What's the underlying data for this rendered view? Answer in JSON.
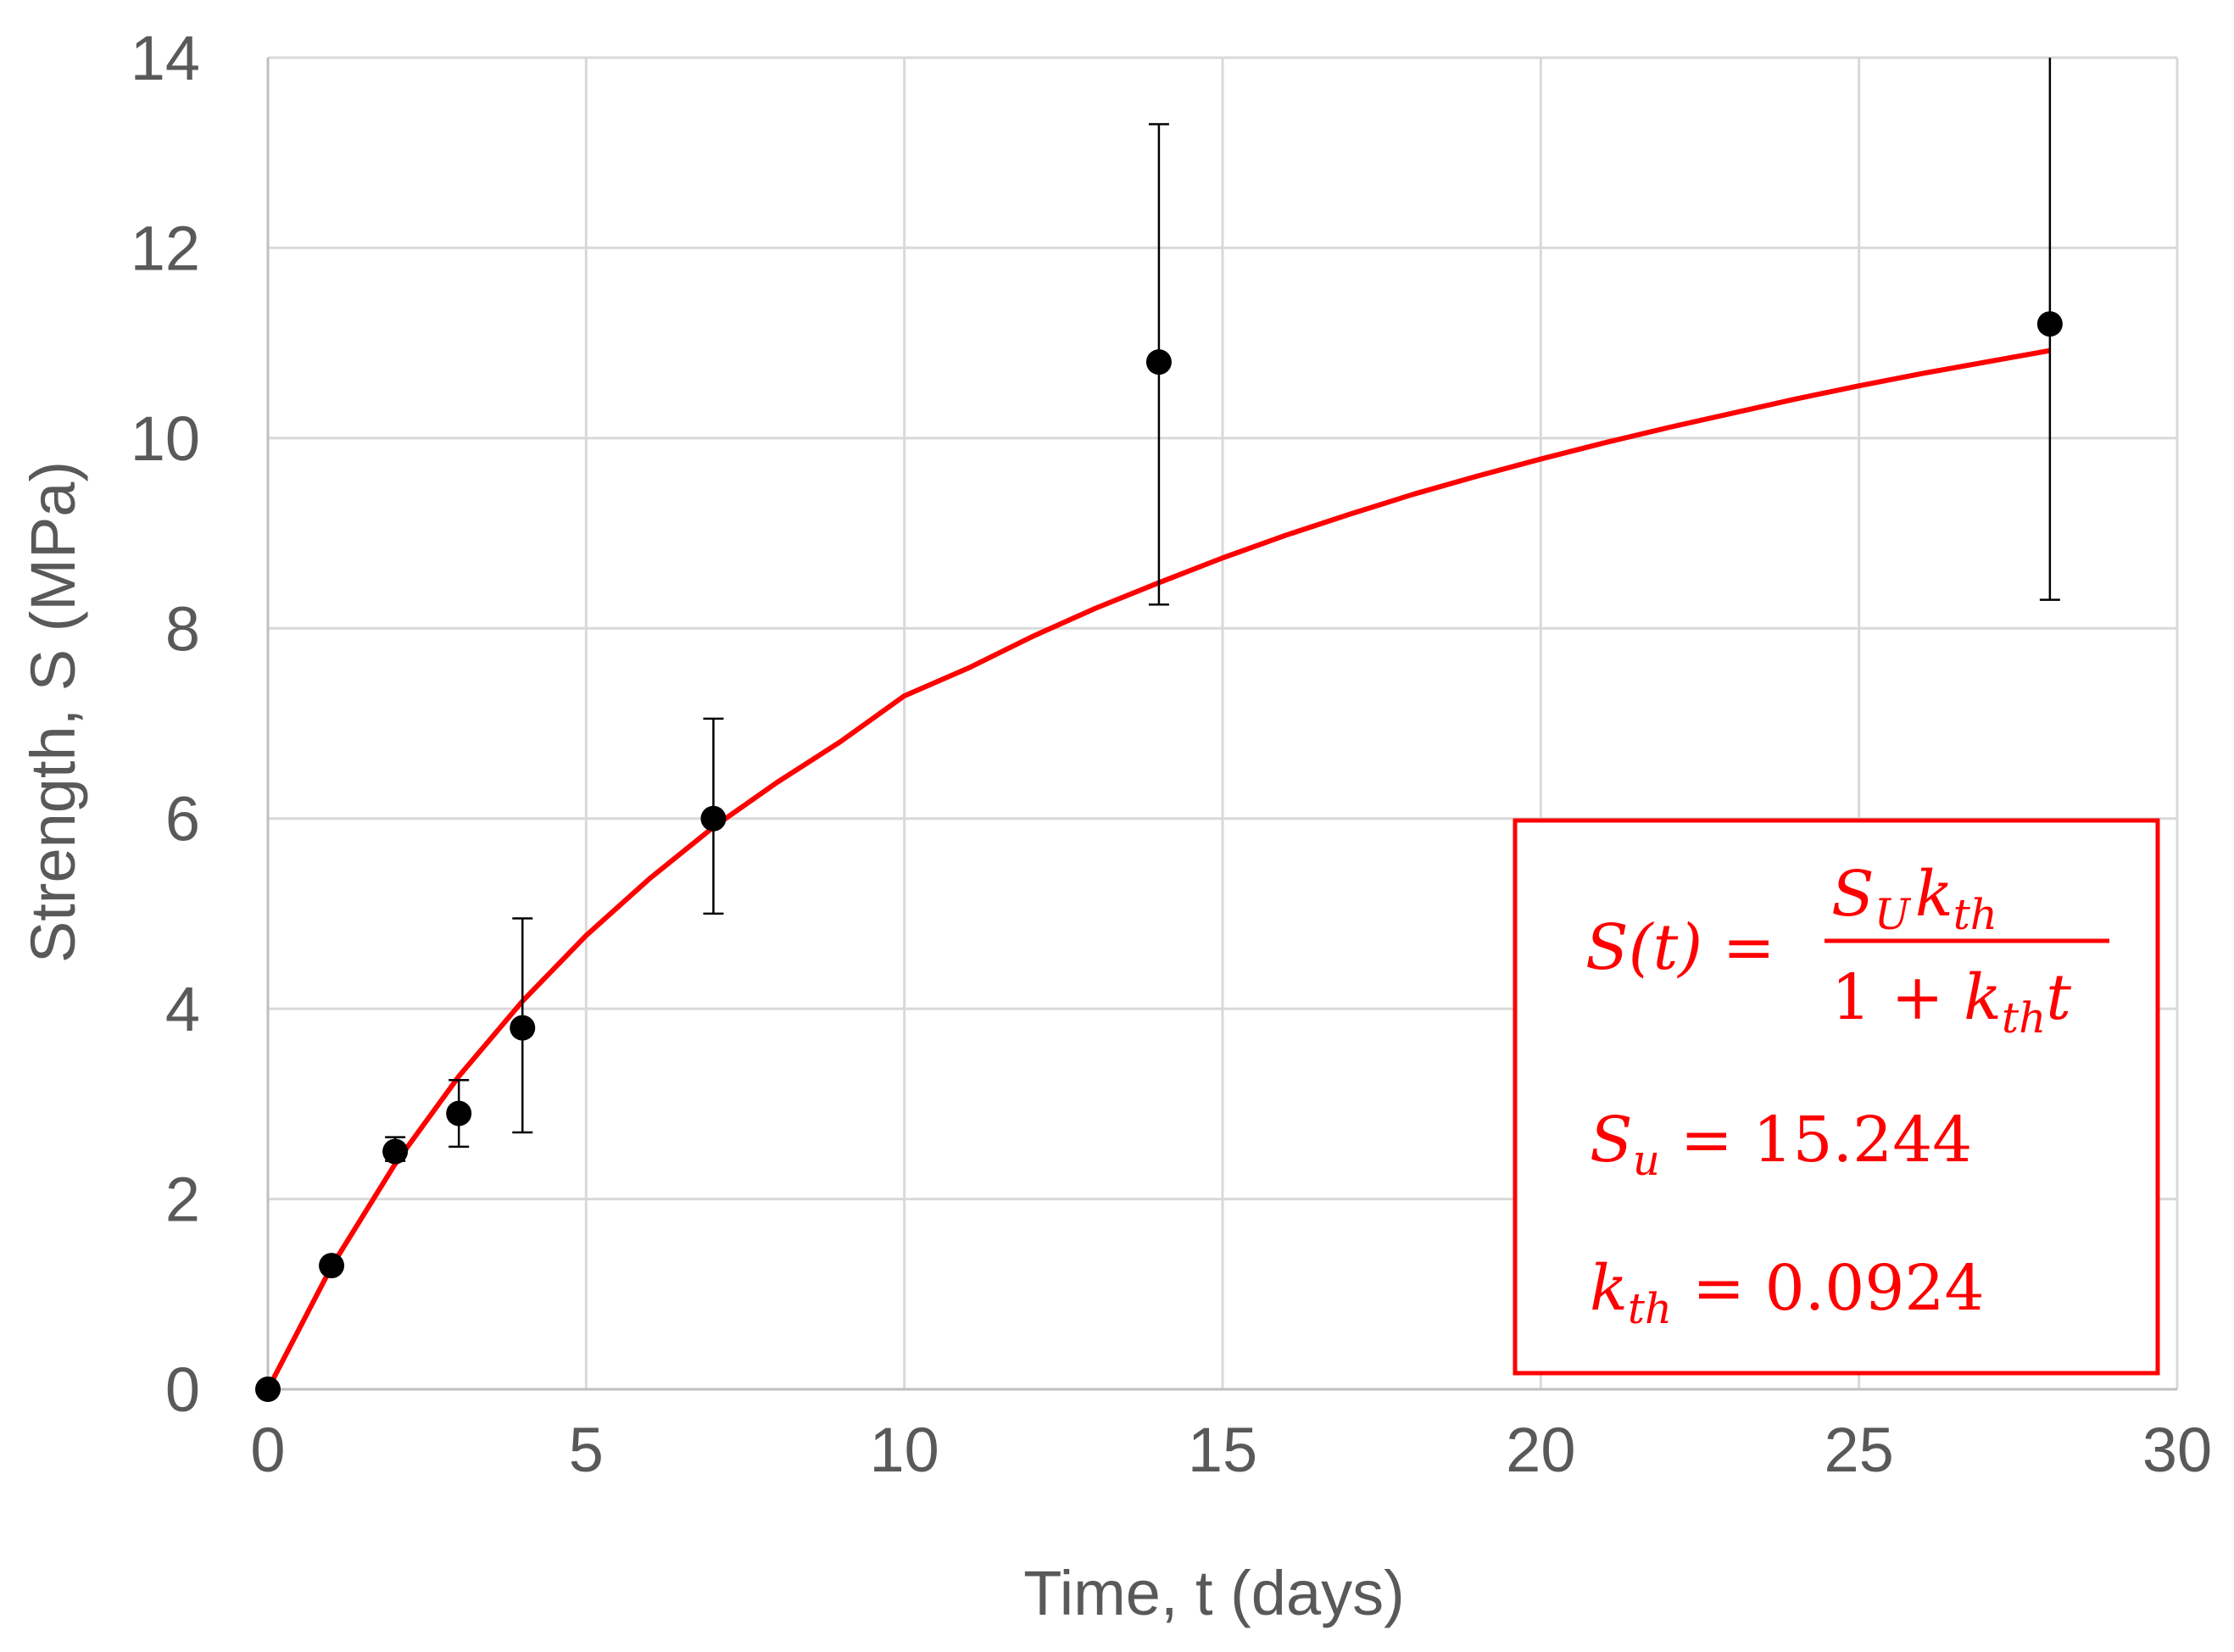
{
  "chart_data": {
    "type": "scatter",
    "xlabel": "Time, t (days)",
    "ylabel": "Strength, S (MPa)",
    "xlim": [
      0,
      30
    ],
    "ylim": [
      0,
      14
    ],
    "x_ticks": [
      0,
      5,
      10,
      15,
      20,
      25,
      30
    ],
    "y_ticks": [
      0,
      2,
      4,
      6,
      8,
      10,
      12,
      14
    ],
    "grid": true,
    "series": [
      {
        "type": "scatter",
        "color": "#000000",
        "x": [
          0,
          1,
          2,
          3,
          4,
          7,
          14,
          28
        ],
        "y": [
          0,
          1.3,
          2.5,
          2.9,
          3.8,
          6.0,
          10.8,
          11.2
        ],
        "error_low": [
          0,
          1.3,
          2.4,
          2.55,
          2.7,
          5.0,
          8.25,
          8.3
        ],
        "error_high": [
          0,
          1.3,
          2.65,
          3.25,
          4.95,
          7.05,
          13.3,
          14.0
        ]
      },
      {
        "type": "line",
        "color": "#ff0000",
        "model": "S(t) = S_U k_th t / (1 + k_th t)",
        "x": [
          0,
          1,
          2,
          3,
          4,
          5,
          6,
          7,
          8,
          9,
          10,
          11,
          12,
          13,
          14,
          15,
          16,
          17,
          18,
          19,
          20,
          21,
          22,
          23,
          24,
          25,
          26,
          27,
          28
        ],
        "y": [
          0,
          1.29,
          2.37,
          3.29,
          4.08,
          4.77,
          5.37,
          5.91,
          6.38,
          6.81,
          7.29,
          7.58,
          7.91,
          8.21,
          8.48,
          8.74,
          8.98,
          9.2,
          9.41,
          9.6,
          9.78,
          9.95,
          10.11,
          10.26,
          10.41,
          10.55,
          10.68,
          10.8,
          10.92
        ]
      }
    ],
    "annotation": {
      "border_color": "#ff0000",
      "formula_lhs": "S(t) =",
      "formula_numerator": "S",
      "formula_numerator_sub": "U",
      "formula_numerator_k": "k",
      "formula_numerator_k_sub": "th",
      "formula_denominator_one": "1 + ",
      "formula_denominator_k": "k",
      "formula_denominator_k_sub": "th",
      "formula_denominator_t": "t",
      "su_symbol": "S",
      "su_sub": "u",
      "su_value": "= 15.244",
      "kth_symbol": "k",
      "kth_sub": "th",
      "kth_value": "= 0.0924"
    }
  }
}
